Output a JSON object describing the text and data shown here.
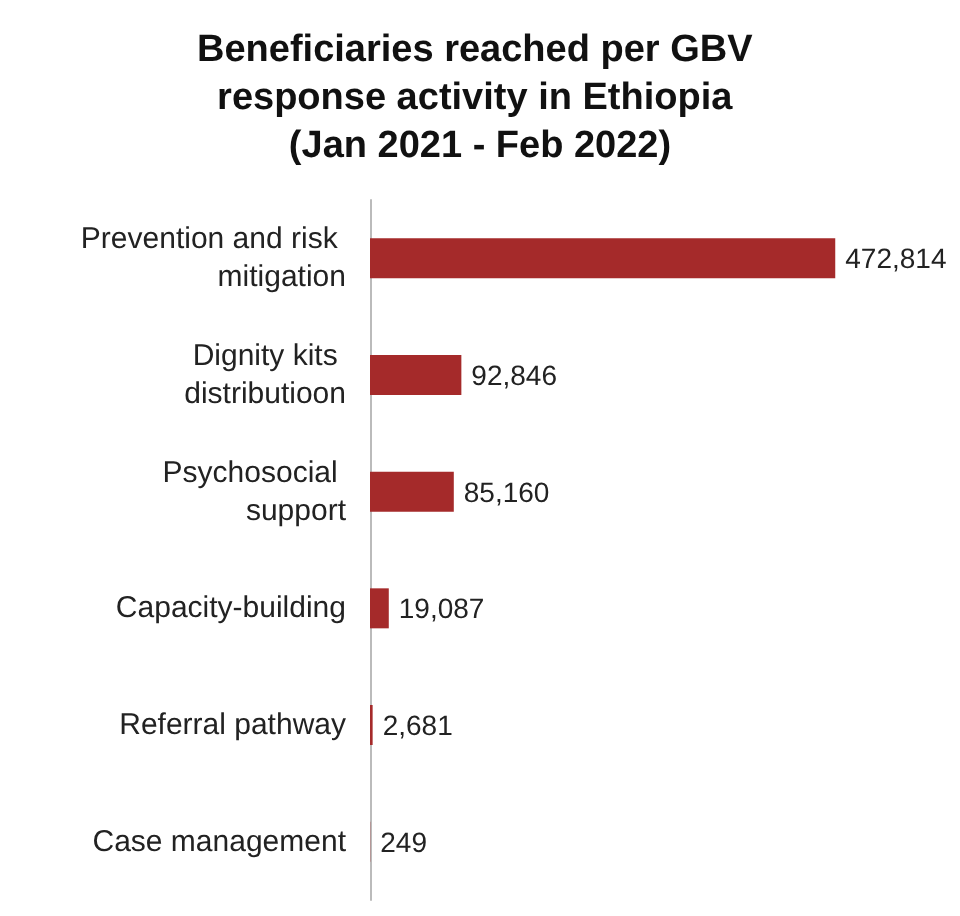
{
  "chart_data": {
    "type": "bar",
    "orientation": "horizontal",
    "title": "Beneficiaries reached per GBV response activity in Ethiopia (Jan 2021 - Feb 2022)",
    "categories": [
      "Prevention and risk mitigation",
      "Dignity kits distributioon",
      "Psychosocial support",
      "Capacity-building",
      "Referral pathway",
      "Case management"
    ],
    "values": [
      472814,
      92846,
      85160,
      19087,
      2681,
      249
    ],
    "value_labels": [
      "472,814",
      "92,846",
      "85,160",
      "19,087",
      "2,681",
      "249"
    ],
    "color": "#a52a2a"
  }
}
